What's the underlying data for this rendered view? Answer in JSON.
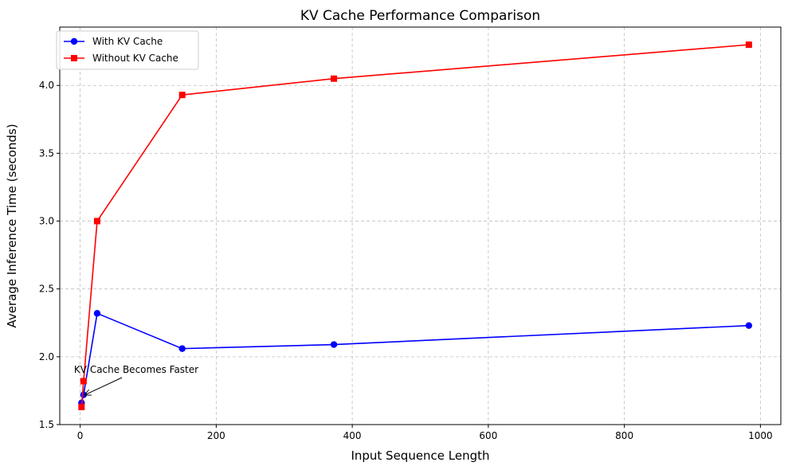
{
  "chart_data": {
    "type": "line",
    "title": "KV Cache Performance Comparison",
    "xlabel": "Input Sequence Length",
    "ylabel": "Average Inference Time (seconds)",
    "xlim": [
      -30,
      1030
    ],
    "ylim": [
      1.5,
      4.43
    ],
    "xticks": [
      0,
      200,
      400,
      600,
      800,
      1000
    ],
    "yticks": [
      1.5,
      2.0,
      2.5,
      3.0,
      3.5,
      4.0
    ],
    "xtick_labels": [
      "0",
      "200",
      "400",
      "600",
      "800",
      "1000"
    ],
    "ytick_labels": [
      "1.5",
      "2.0",
      "2.5",
      "3.0",
      "3.5",
      "4.0"
    ],
    "grid": true,
    "legend_position": "top-left",
    "series": [
      {
        "name": "With KV Cache",
        "color": "#0000ff",
        "marker": "circle",
        "x": [
          2,
          5,
          25,
          150,
          373,
          983
        ],
        "y": [
          1.66,
          1.72,
          2.32,
          2.06,
          2.09,
          2.23
        ]
      },
      {
        "name": "Without KV Cache",
        "color": "#ff0000",
        "marker": "square",
        "x": [
          2,
          5,
          25,
          150,
          373,
          983
        ],
        "y": [
          1.63,
          1.82,
          3.0,
          3.93,
          4.05,
          4.3
        ]
      }
    ],
    "annotations": [
      {
        "text": "KV Cache Becomes Faster",
        "target_x": 5,
        "target_y": 1.72
      }
    ]
  }
}
